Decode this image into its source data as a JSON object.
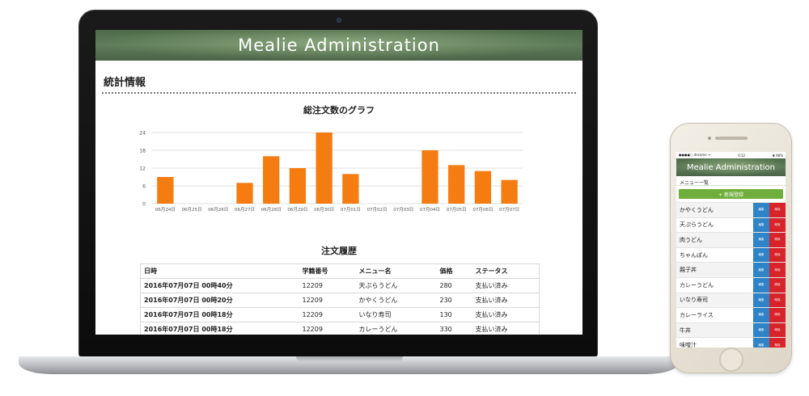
{
  "laptop": {
    "app_title": "Mealie Administration",
    "section_title": "統計情報",
    "chart_title": "総注文数のグラフ",
    "orders_title": "注文履歴",
    "orders_table": {
      "headers": [
        "日時",
        "学籍番号",
        "メニュー名",
        "価格",
        "ステータス"
      ],
      "rows": [
        [
          "2016年07月07日 00時40分",
          "12209",
          "天ぷらうどん",
          "280",
          "支払い済み"
        ],
        [
          "2016年07月07日 00時20分",
          "12209",
          "かやくうどん",
          "230",
          "支払い済み"
        ],
        [
          "2016年07月07日 00時18分",
          "12209",
          "いなり寿司",
          "130",
          "支払い済み"
        ],
        [
          "2016年07月07日 00時18分",
          "12209",
          "カレーうどん",
          "330",
          "支払い済み"
        ]
      ]
    }
  },
  "chart_data": {
    "type": "bar",
    "title": "総注文数のグラフ",
    "categories": [
      "06月24日",
      "06月25日",
      "06月26日",
      "06月27日",
      "06月28日",
      "06月29日",
      "06月30日",
      "07月01日",
      "07月02日",
      "07月03日",
      "07月04日",
      "07月05日",
      "07月06日",
      "07月07日"
    ],
    "values": [
      9,
      0,
      0,
      7,
      16,
      12,
      24,
      10,
      0,
      0,
      18,
      13,
      11,
      8
    ],
    "yticks": [
      0,
      6,
      12,
      18,
      24
    ],
    "ylim": [
      0,
      24
    ],
    "grid": true,
    "bar_color": "#f57c10"
  },
  "phone": {
    "status_left": "●●●●○ docomo ᯤ",
    "status_time": "0:12",
    "status_right": "✱ 98%",
    "app_title": "Mealie Administration",
    "subtitle": "メニュー一覧",
    "new_button": "+ 新規登録",
    "edit_label": "編集",
    "delete_label": "削除",
    "menu_items": [
      "かやくうどん",
      "天ぷらうどん",
      "肉うどん",
      "ちゃんぽん",
      "親子丼",
      "カレーうどん",
      "いなり寿司",
      "カレーライス",
      "牛丼",
      "味噌汁"
    ],
    "colors": {
      "new_button": "#6fae3b",
      "edit": "#2f84c8",
      "delete": "#d8232a"
    }
  }
}
